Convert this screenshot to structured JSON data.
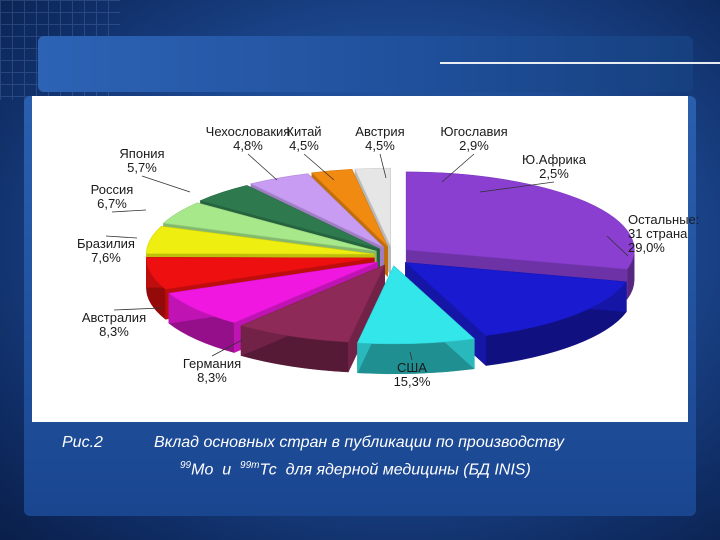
{
  "chart_data": {
    "type": "pie",
    "style": "3d-exploded",
    "slices": [
      {
        "label": "Остальные: 31 страна",
        "lines": [
          "Остальные:",
          "31 страна"
        ],
        "value_label": "29,0%",
        "value": 29.0,
        "color": "#8a3fd1"
      },
      {
        "label": "США",
        "lines": [
          "США"
        ],
        "value_label": "15,3%",
        "value": 15.3,
        "color": "#1a1ad0"
      },
      {
        "label": "Германия",
        "lines": [
          "Германия"
        ],
        "value_label": "8,3%",
        "value": 8.3,
        "color": "#33e6ea"
      },
      {
        "label": "Австралия",
        "lines": [
          "Австралия"
        ],
        "value_label": "8,3%",
        "value": 8.3,
        "color": "#8d2a57"
      },
      {
        "label": "Бразилия",
        "lines": [
          "Бразилия"
        ],
        "value_label": "7,6%",
        "value": 7.6,
        "color": "#f018e0"
      },
      {
        "label": "Россия",
        "lines": [
          "Россия"
        ],
        "value_label": "6,7%",
        "value": 6.7,
        "color": "#ee1010"
      },
      {
        "label": "Япония",
        "lines": [
          "Япония"
        ],
        "value_label": "5,7%",
        "value": 5.7,
        "color": "#eeee10"
      },
      {
        "label": "Чехословакия",
        "lines": [
          "Чехословакия"
        ],
        "value_label": "4,8%",
        "value": 4.8,
        "color": "#a6e88a"
      },
      {
        "label": "Китай",
        "lines": [
          "Китай"
        ],
        "value_label": "4,5%",
        "value": 4.5,
        "color": "#2e7a4e"
      },
      {
        "label": "Австрия",
        "lines": [
          "Австрия"
        ],
        "value_label": "4,5%",
        "value": 4.5,
        "color": "#c79cf2"
      },
      {
        "label": "Югославия",
        "lines": [
          "Югославия"
        ],
        "value_label": "2,9%",
        "value": 2.9,
        "color": "#f08a10"
      },
      {
        "label": "Ю.Африка",
        "lines": [
          "Ю.Африка"
        ],
        "value_label": "2,5%",
        "value": 2.5,
        "color": "#e6e6e6"
      }
    ]
  },
  "caption": {
    "fig_label": "Рис.2",
    "line1": "Вклад основных стран в публикации  по производству",
    "isotope1_mass": "99",
    "isotope1_symbol": "Мо",
    "conj": "и",
    "isotope2_mass": "99m",
    "isotope2_symbol": "Тс",
    "line2_rest": "для ядерной медицины (БД INIS)"
  }
}
